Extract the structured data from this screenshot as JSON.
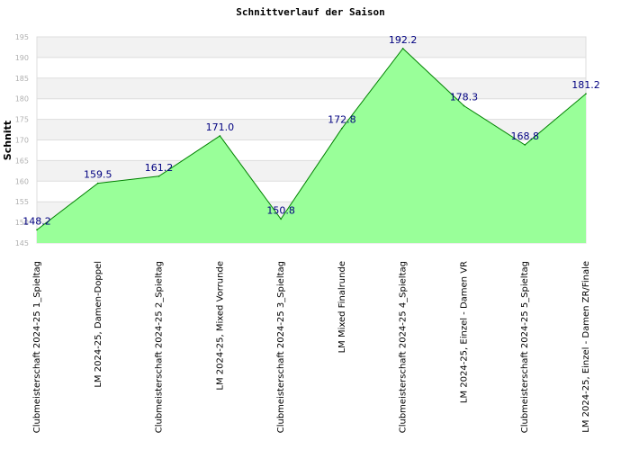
{
  "chart_data": {
    "type": "area",
    "title": "Schnittverlauf der Saison",
    "xlabel": "",
    "ylabel": "Schnitt",
    "ylim": [
      145,
      195
    ],
    "yticks": [
      145,
      150,
      155,
      160,
      165,
      170,
      175,
      180,
      185,
      190,
      195
    ],
    "grid": true,
    "categories": [
      "Clubmeisterschaft 2024-25   1_Spieltag",
      "LM 2024-25, Damen-Doppel",
      "Clubmeisterschaft 2024-25   2_Spieltag",
      "LM 2024-25, Mixed Vorrunde",
      "Clubmeisterschaft 2024-25   3_Spieltag",
      "LM Mixed Finalrunde",
      "Clubmeisterschaft 2024-25   4_Spieltag",
      "LM 2024-25, Einzel - Damen VR",
      "Clubmeisterschaft 2024-25   5_Spieltag",
      "LM 2024-25, Einzel - Damen ZR/Finale"
    ],
    "values": [
      148.2,
      159.5,
      161.2,
      171.0,
      150.8,
      172.8,
      192.2,
      178.3,
      168.8,
      181.2
    ],
    "data_labels": [
      "148.2",
      "159.5",
      "161.2",
      "171.0",
      "150.8",
      "172.8",
      "192.2",
      "178.3",
      "168.8",
      "181.2"
    ],
    "colors": {
      "fill": "#99ff99",
      "line": "#008000",
      "band": "#f2f2f2",
      "grid": "#dddddd",
      "label": "#000080"
    }
  }
}
